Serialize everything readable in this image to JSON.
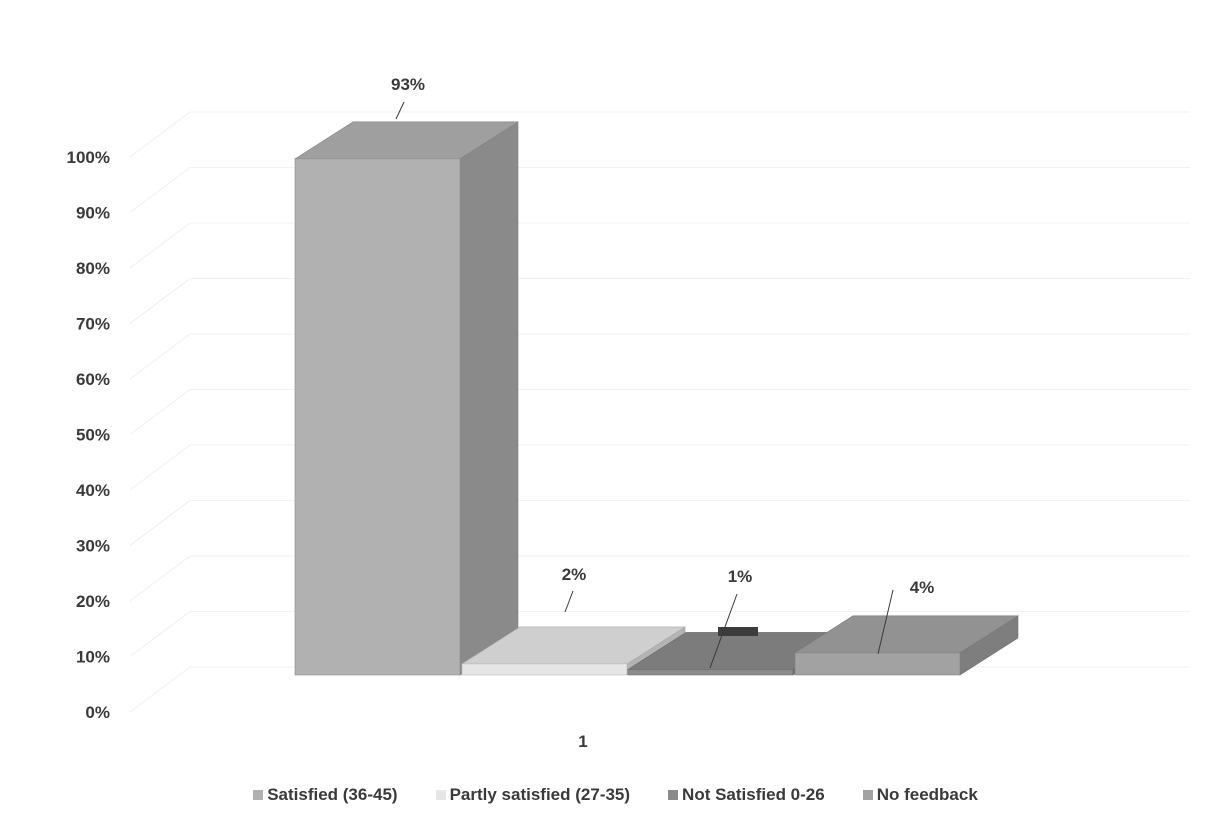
{
  "chart_data": {
    "type": "bar",
    "subtype": "3d-column",
    "categories": [
      "1"
    ],
    "series": [
      {
        "name": "Satisfied (36-45)",
        "values": [
          93
        ],
        "label": "93%",
        "color": "#b1b1b1"
      },
      {
        "name": "Partly satisfied (27-35)",
        "values": [
          2
        ],
        "label": "2%",
        "color": "#e6e6e6"
      },
      {
        "name": "Not Satisfied  0-26",
        "values": [
          1
        ],
        "label": "1%",
        "color": "#8a8a8a"
      },
      {
        "name": "No feedback",
        "values": [
          4
        ],
        "label": "4%",
        "color": "#a2a2a2"
      }
    ],
    "ylim": [
      0,
      100
    ],
    "y_ticks": [
      "0%",
      "10%",
      "20%",
      "30%",
      "40%",
      "50%",
      "60%",
      "70%",
      "80%",
      "90%",
      "100%"
    ],
    "x_tick_label": "1",
    "title": "",
    "xlabel": "",
    "ylabel": "",
    "legend_position": "bottom",
    "grid": true
  }
}
